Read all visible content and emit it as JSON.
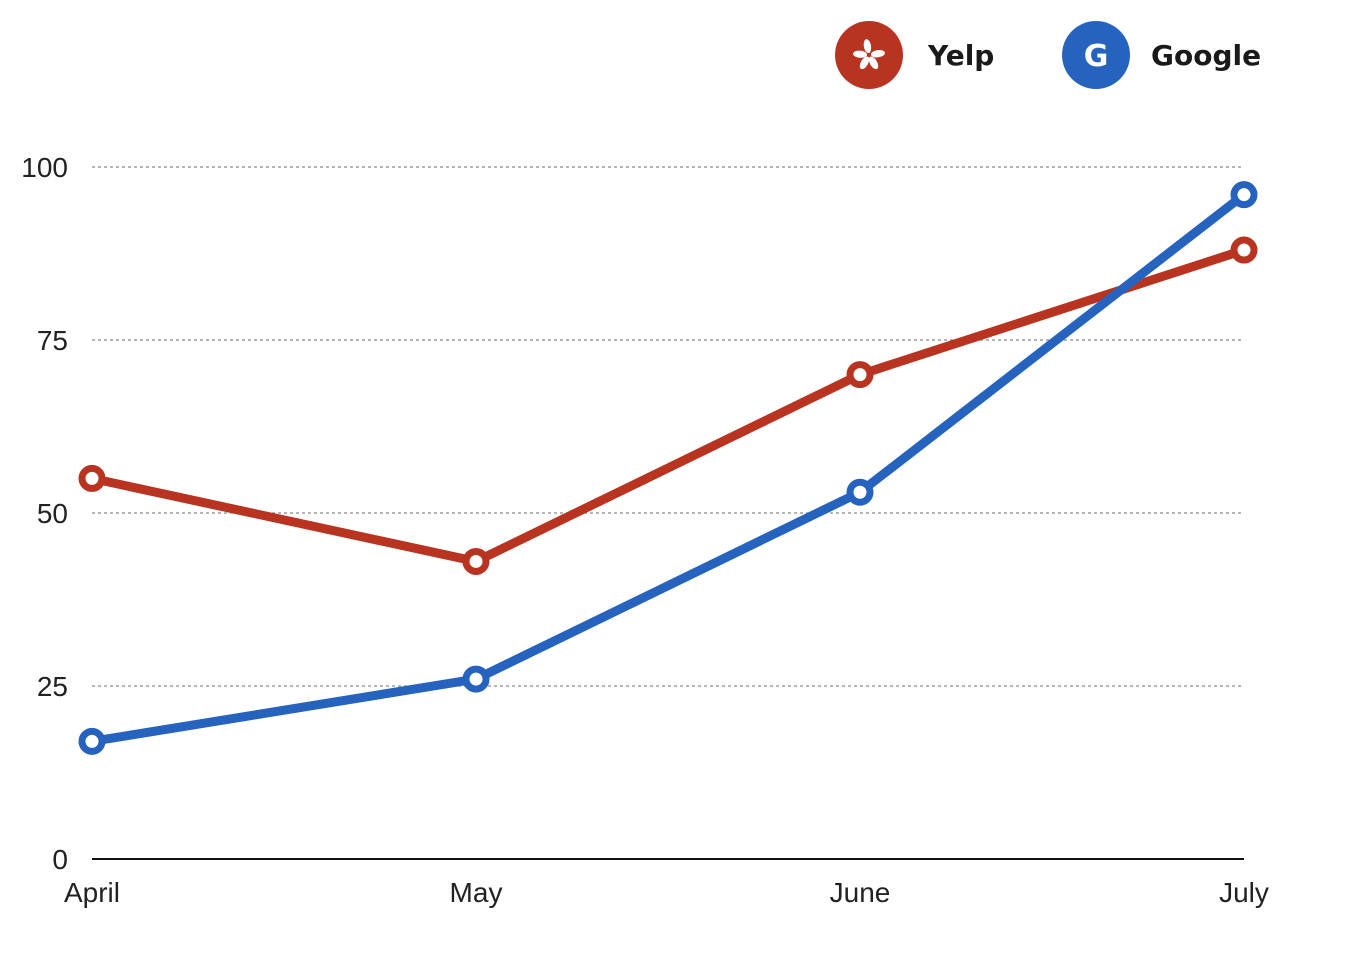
{
  "chart_data": {
    "type": "line",
    "categories": [
      "April",
      "May",
      "June",
      "July"
    ],
    "ylim": [
      0,
      100
    ],
    "yticks": [
      0,
      25,
      50,
      75,
      100
    ],
    "grid": true,
    "legend_placement": "top-right",
    "series": [
      {
        "name": "Yelp",
        "color": "#b93420",
        "icon": "yelp-burst-icon",
        "values": [
          55,
          43,
          70,
          88
        ]
      },
      {
        "name": "Google",
        "color": "#2663be",
        "icon": "google-g-icon",
        "icon_glyph": "G",
        "values": [
          17,
          26,
          53,
          96
        ]
      }
    ]
  }
}
